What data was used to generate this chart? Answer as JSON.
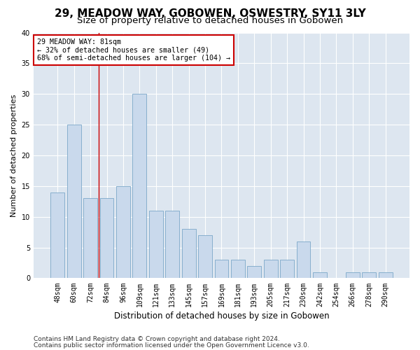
{
  "title": "29, MEADOW WAY, GOBOWEN, OSWESTRY, SY11 3LY",
  "subtitle": "Size of property relative to detached houses in Gobowen",
  "xlabel": "Distribution of detached houses by size in Gobowen",
  "ylabel": "Number of detached properties",
  "categories": [
    "48sqm",
    "60sqm",
    "72sqm",
    "84sqm",
    "96sqm",
    "109sqm",
    "121sqm",
    "133sqm",
    "145sqm",
    "157sqm",
    "169sqm",
    "181sqm",
    "193sqm",
    "205sqm",
    "217sqm",
    "230sqm",
    "242sqm",
    "254sqm",
    "266sqm",
    "278sqm",
    "290sqm"
  ],
  "values": [
    14,
    25,
    13,
    13,
    15,
    30,
    11,
    11,
    8,
    7,
    3,
    3,
    2,
    3,
    3,
    6,
    1,
    0,
    1,
    1,
    1
  ],
  "bar_color": "#c9d9ec",
  "bar_edgecolor": "#7ba7c9",
  "vline_x": 2.5,
  "vline_color": "#cc0000",
  "annotation_text": "29 MEADOW WAY: 81sqm\n← 32% of detached houses are smaller (49)\n68% of semi-detached houses are larger (104) →",
  "annotation_box_edgecolor": "#cc0000",
  "annotation_box_facecolor": "#ffffff",
  "ylim": [
    0,
    40
  ],
  "yticks": [
    0,
    5,
    10,
    15,
    20,
    25,
    30,
    35,
    40
  ],
  "footnote1": "Contains HM Land Registry data © Crown copyright and database right 2024.",
  "footnote2": "Contains public sector information licensed under the Open Government Licence v3.0.",
  "background_color": "#dde6f0",
  "title_fontsize": 11,
  "subtitle_fontsize": 9.5,
  "xlabel_fontsize": 8.5,
  "ylabel_fontsize": 8,
  "tick_fontsize": 7,
  "footnote_fontsize": 6.5
}
